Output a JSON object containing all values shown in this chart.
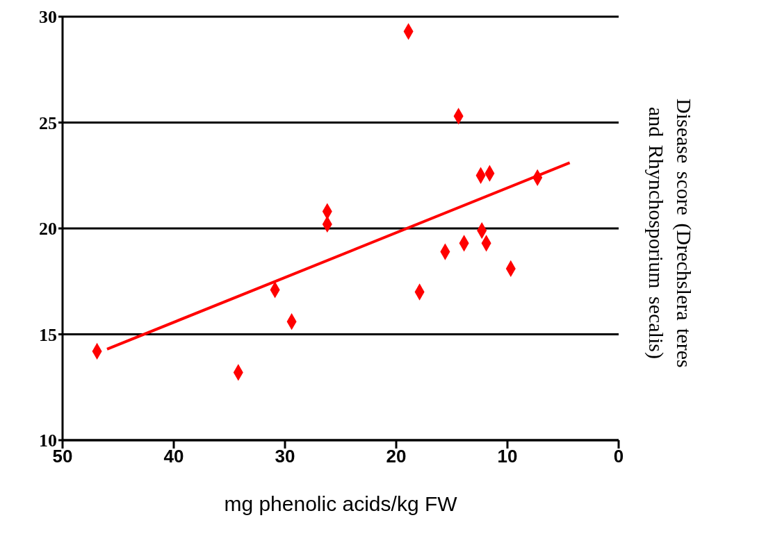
{
  "chart_data": {
    "type": "scatter",
    "xlabel": "mg phenolic acids/kg FW",
    "ylabel": "Disease score (Drechslera teres and Rhynchosporium secalis)",
    "xlim": [
      50,
      0
    ],
    "xticks": [
      50,
      40,
      30,
      20,
      10,
      0
    ],
    "ylim": [
      10,
      30
    ],
    "yticks": [
      10,
      15,
      20,
      25,
      30
    ],
    "grid": "y",
    "marker": "diamond",
    "series": [
      {
        "type": "scatter",
        "color": "#ff0000",
        "x": [
          46.9,
          34.2,
          30.9,
          29.4,
          26.2,
          26.2,
          18.9,
          17.9,
          15.6,
          14.4,
          13.9,
          12.3,
          12.4,
          11.6,
          11.9,
          9.7,
          7.3
        ],
        "values": [
          14.2,
          13.2,
          17.1,
          15.6,
          20.8,
          20.2,
          29.3,
          17.0,
          18.9,
          25.3,
          19.3,
          19.9,
          22.5,
          22.6,
          19.3,
          18.1,
          22.4
        ]
      },
      {
        "type": "line",
        "marker": "none",
        "color": "#ff0000",
        "x": [
          46.0,
          4.4
        ],
        "values": [
          14.3,
          23.1
        ]
      }
    ]
  }
}
